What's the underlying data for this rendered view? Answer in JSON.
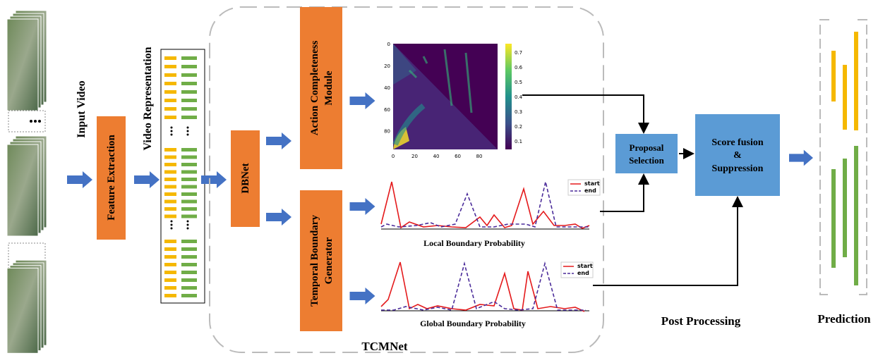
{
  "input_video": "Input Video",
  "feature_extraction": "Feature Extraction",
  "video_representation": "Video Representation",
  "dbnet": "DBNet",
  "action_module": [
    "Action Completeness",
    "Module"
  ],
  "boundary_generator": [
    "Temporal Boundary",
    "Generator"
  ],
  "heatmap": {
    "yticks": [
      0,
      20,
      40,
      60,
      80
    ],
    "xticks": [
      0,
      20,
      40,
      60,
      80
    ],
    "colorbar_ticks": [
      0.1,
      0.2,
      0.3,
      0.4,
      0.5,
      0.6,
      0.7
    ]
  },
  "local_plot": {
    "label": "Local Boundary Probability",
    "legend": [
      "start",
      "end"
    ]
  },
  "global_plot": {
    "label": "Global Boundary Probability",
    "legend": [
      "start",
      "end"
    ]
  },
  "tcmnet": "TCMNet",
  "proposal_selection": [
    "Proposal",
    "Selection"
  ],
  "score_fusion": [
    "Score fusion",
    "&",
    "Suppression"
  ],
  "post_processing": "Post Processing",
  "prediction": "Prediction"
}
